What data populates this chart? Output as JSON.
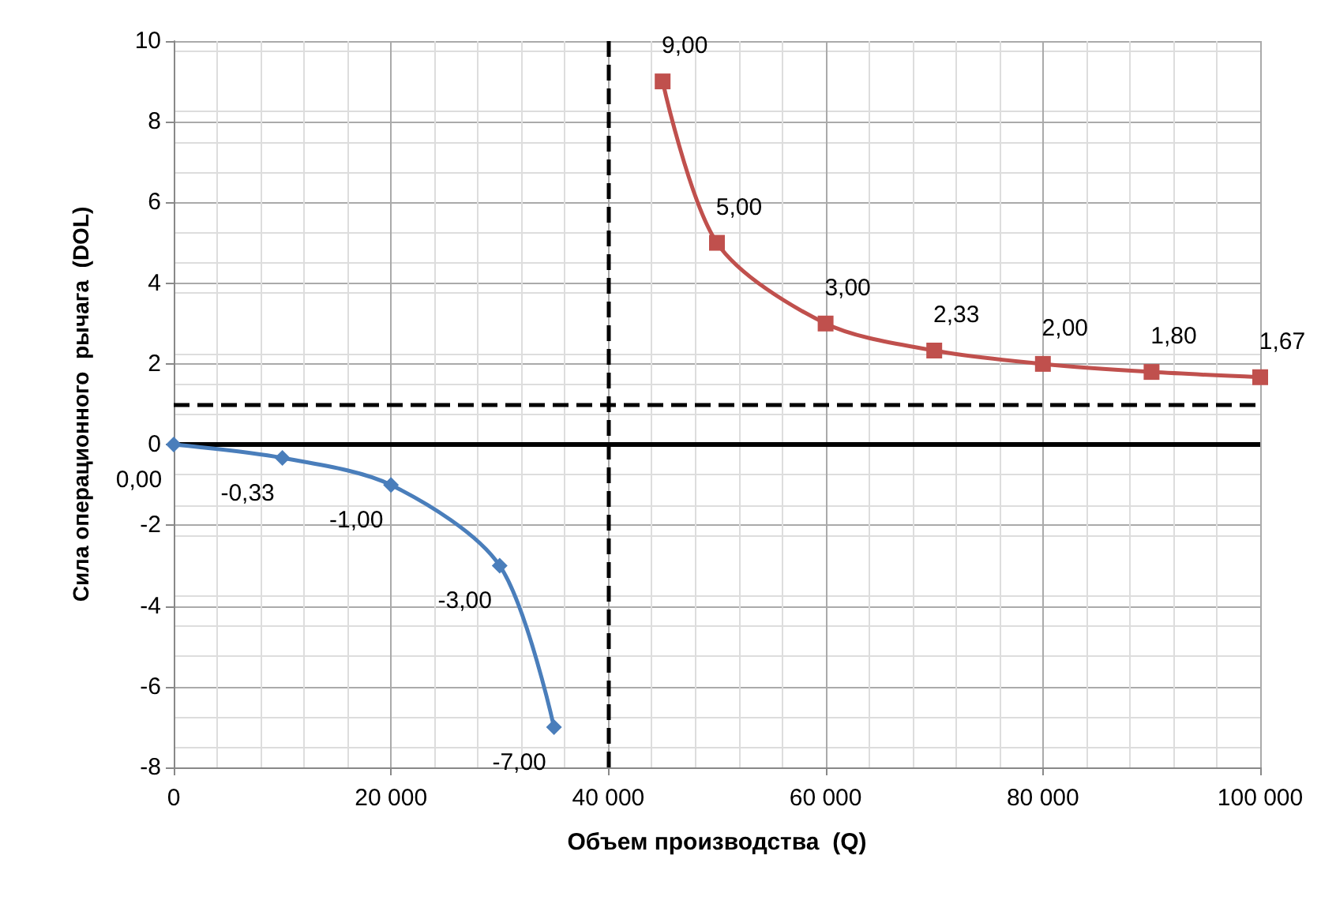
{
  "chart_data": {
    "type": "line",
    "xlabel": "Объем производства  (Q)",
    "ylabel": "Сила операционного  рычага  (DOL)",
    "xlim": [
      0,
      100000
    ],
    "xticks": [
      0,
      {
        "value": 20000,
        "label": "20 000"
      },
      {
        "value": 40000,
        "label": "40 000"
      },
      {
        "value": 60000,
        "label": "60 000"
      },
      {
        "value": 80000,
        "label": "80 000"
      },
      {
        "value": 100000,
        "label": "100 000"
      }
    ],
    "ylim": [
      -8,
      10
    ],
    "yticks": [
      -8,
      -6,
      -4,
      -2,
      0,
      2,
      4,
      6,
      8,
      10
    ],
    "grid": true,
    "series": [
      {
        "color": "#4a7ebb",
        "marker": "diamond",
        "x": [
          0,
          10000,
          20000,
          30000,
          35000
        ],
        "values": [
          0,
          -0.33,
          -1,
          -3,
          -7
        ],
        "value_labels": [
          "0,00",
          "-0,33",
          "-1,00",
          "-3,00",
          "-7,00"
        ]
      },
      {
        "color": "#c0504d",
        "marker": "square",
        "x": [
          45000,
          50000,
          60000,
          70000,
          80000,
          90000,
          100000
        ],
        "values": [
          9,
          5,
          3,
          2.33,
          2,
          1.8,
          1.67
        ],
        "value_labels": [
          "9,00",
          "5,00",
          "3,00",
          "2,33",
          "2,00",
          "1,80",
          "1,67"
        ]
      }
    ],
    "ref_lines": [
      {
        "axis": "x",
        "value": 40000,
        "color": "#000000",
        "line_style": "dashed"
      },
      {
        "axis": "y",
        "value": 1,
        "color": "#000000",
        "line_style": "dashed"
      },
      {
        "axis": "y",
        "value": 0,
        "color": "#000000",
        "line_style": "solid"
      }
    ]
  }
}
